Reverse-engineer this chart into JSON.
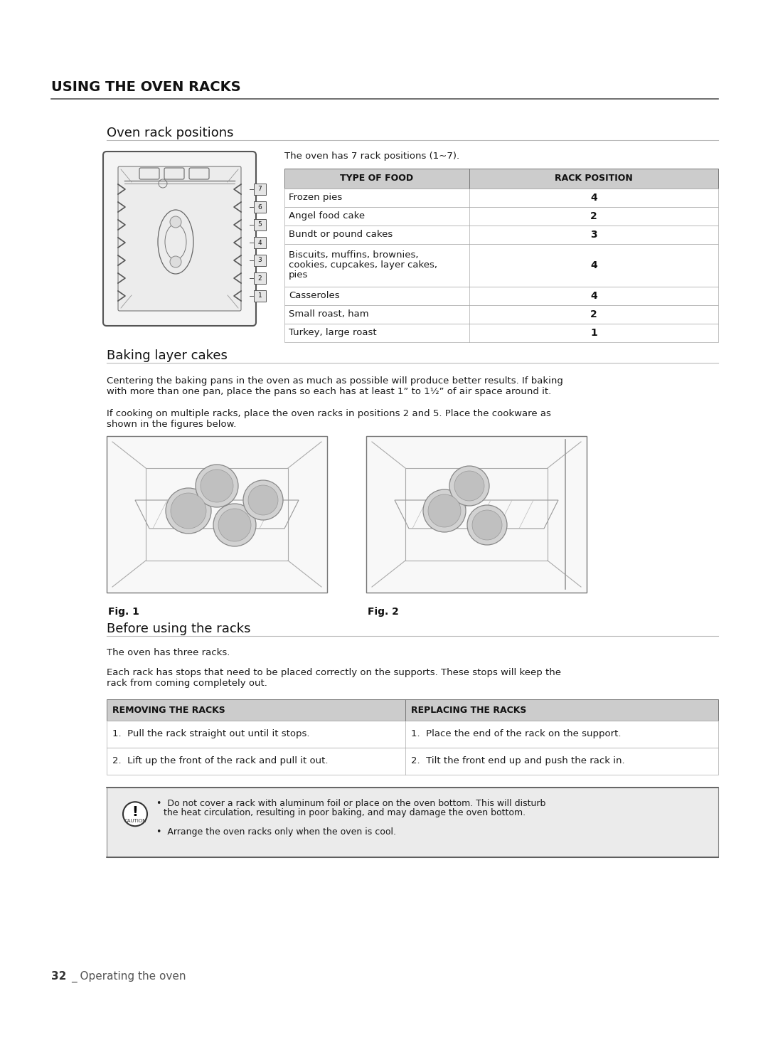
{
  "bg_color": "#ffffff",
  "main_title": "USING THE OVEN RACKS",
  "section1_title": "Oven rack positions",
  "section1_subtitle": "The oven has 7 rack positions (1~7).",
  "table1_headers": [
    "TYPE OF FOOD",
    "RACK POSITION"
  ],
  "table1_rows": [
    [
      "Frozen pies",
      "4"
    ],
    [
      "Angel food cake",
      "2"
    ],
    [
      "Bundt or pound cakes",
      "3"
    ],
    [
      "Biscuits, muffins, brownies,\ncookies, cupcakes, layer cakes,\npies",
      "4"
    ],
    [
      "Casseroles",
      "4"
    ],
    [
      "Small roast, ham",
      "2"
    ],
    [
      "Turkey, large roast",
      "1"
    ]
  ],
  "section2_title": "Baking layer cakes",
  "section2_para1": "Centering the baking pans in the oven as much as possible will produce better results. If baking\nwith more than one pan, place the pans so each has at least 1” to 1½” of air space around it.",
  "section2_para2": "If cooking on multiple racks, place the oven racks in positions 2 and 5. Place the cookware as\nshown in the figures below.",
  "fig1_label": "Fig. 1",
  "fig2_label": "Fig. 2",
  "section3_title": "Before using the racks",
  "section3_para1": "The oven has three racks.",
  "section3_para2": "Each rack has stops that need to be placed correctly on the supports. These stops will keep the\nrack from coming completely out.",
  "table2_headers": [
    "REMOVING THE RACKS",
    "REPLACING THE RACKS"
  ],
  "table2_col1": [
    "1.  Pull the rack straight out until it stops.",
    "2.  Lift up the front of the rack and pull it out."
  ],
  "table2_col2": [
    "1.  Place the end of the rack on the support.",
    "2.  Tilt the front end up and push the rack in."
  ],
  "caution_bullet1": "Do not cover a rack with aluminum foil or place on the oven bottom. This will disturb\nthe heat circulation, resulting in poor baking, and may damage the oven bottom.",
  "caution_bullet2": "Arrange the oven racks only when the oven is cool.",
  "footer_num": "32",
  "footer_text": "_ Operating the oven",
  "header_bg": "#cccccc",
  "caution_bg": "#ebebeb"
}
